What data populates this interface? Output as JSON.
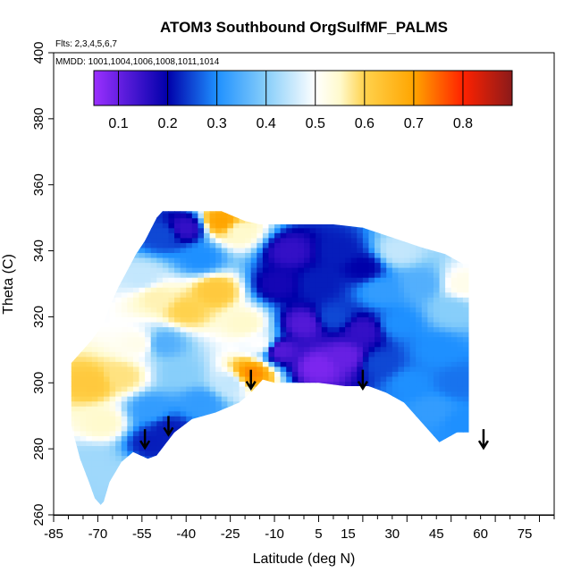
{
  "chart_data": {
    "type": "heatmap",
    "title": "ATOM3 Southbound OrgSulfMF_PALMS",
    "annotations": {
      "flights": "Flts: 2,3,4,5,6,7",
      "dates": "MMDD: 1001,1004,1006,1008,1011,1014"
    },
    "xlabel": "Latitude (deg N)",
    "ylabel": "Theta (C)",
    "xlim": [
      -85,
      85
    ],
    "ylim": [
      260,
      400
    ],
    "x_ticks": [
      -85,
      -70,
      -55,
      -40,
      -25,
      -10,
      5,
      15,
      30,
      45,
      60,
      75
    ],
    "y_ticks": [
      260,
      280,
      300,
      320,
      340,
      360,
      380,
      400
    ],
    "colorbar": {
      "min": 0.05,
      "max": 0.9,
      "ticks": [
        0.1,
        0.2,
        0.3,
        0.4,
        0.5,
        0.6,
        0.7,
        0.8
      ],
      "stops": [
        "#9b30ff",
        "#0000aa",
        "#1e90ff",
        "#87cefa",
        "#ffffff",
        "#fffacd",
        "#ffd24d",
        "#ffa500",
        "#ff2200",
        "#8b1a1a"
      ],
      "stop_values": [
        0.05,
        0.2,
        0.3,
        0.4,
        0.5,
        0.55,
        0.6,
        0.7,
        0.8,
        0.9
      ]
    },
    "tropopause_arrows": [
      {
        "lat": -54,
        "theta": 280
      },
      {
        "lat": -46,
        "theta": 284
      },
      {
        "lat": -18,
        "theta": 298
      },
      {
        "lat": 20,
        "theta": 298
      },
      {
        "lat": 61,
        "theta": 280
      }
    ],
    "outline": {
      "top": [
        [
          -79,
          306
        ],
        [
          -76,
          309
        ],
        [
          -72,
          313
        ],
        [
          -68,
          318
        ],
        [
          -66,
          323
        ],
        [
          -63,
          329
        ],
        [
          -60,
          334
        ],
        [
          -57,
          339
        ],
        [
          -54,
          343
        ],
        [
          -50,
          350
        ],
        [
          -48,
          352
        ],
        [
          -45,
          352
        ],
        [
          -28,
          352
        ],
        [
          -20,
          349
        ],
        [
          -15,
          348
        ],
        [
          0,
          348
        ],
        [
          10,
          348
        ],
        [
          20,
          347
        ],
        [
          30,
          344
        ],
        [
          40,
          341
        ],
        [
          48,
          339
        ],
        [
          54,
          336
        ],
        [
          56,
          336
        ]
      ],
      "bottom": [
        [
          56,
          285
        ],
        [
          52,
          285
        ],
        [
          46,
          282
        ],
        [
          40,
          288
        ],
        [
          34,
          294
        ],
        [
          28,
          297
        ],
        [
          22,
          299
        ],
        [
          14,
          299
        ],
        [
          5,
          300
        ],
        [
          -10,
          300
        ],
        [
          -14,
          301
        ],
        [
          -18,
          297
        ],
        [
          -22,
          294
        ],
        [
          -30,
          291
        ],
        [
          -38,
          289
        ],
        [
          -44,
          285
        ],
        [
          -50,
          278
        ],
        [
          -53,
          277
        ],
        [
          -58,
          279
        ],
        [
          -62,
          276
        ],
        [
          -66,
          270
        ],
        [
          -68,
          264
        ],
        [
          -69,
          263
        ],
        [
          -71,
          265
        ],
        [
          -73,
          270
        ],
        [
          -76,
          277
        ],
        [
          -79,
          287
        ]
      ]
    },
    "regions": [
      {
        "lat": -72,
        "theta": 300,
        "value": 0.62
      },
      {
        "lat": -62,
        "theta": 302,
        "value": 0.58
      },
      {
        "lat": -68,
        "theta": 288,
        "value": 0.55
      },
      {
        "lat": -72,
        "theta": 276,
        "value": 0.42
      },
      {
        "lat": -64,
        "theta": 272,
        "value": 0.42
      },
      {
        "lat": -56,
        "theta": 312,
        "value": 0.52
      },
      {
        "lat": -50,
        "theta": 326,
        "value": 0.56
      },
      {
        "lat": -55,
        "theta": 332,
        "value": 0.45
      },
      {
        "lat": -48,
        "theta": 345,
        "value": 0.25
      },
      {
        "lat": -40,
        "theta": 347,
        "value": 0.15
      },
      {
        "lat": -28,
        "theta": 349,
        "value": 0.7
      },
      {
        "lat": -22,
        "theta": 346,
        "value": 0.55
      },
      {
        "lat": -35,
        "theta": 338,
        "value": 0.3
      },
      {
        "lat": -30,
        "theta": 328,
        "value": 0.62
      },
      {
        "lat": -40,
        "theta": 322,
        "value": 0.6
      },
      {
        "lat": -20,
        "theta": 318,
        "value": 0.55
      },
      {
        "lat": -48,
        "theta": 312,
        "value": 0.35
      },
      {
        "lat": -42,
        "theta": 303,
        "value": 0.4
      },
      {
        "lat": -52,
        "theta": 292,
        "value": 0.32
      },
      {
        "lat": -46,
        "theta": 286,
        "value": 0.22
      },
      {
        "lat": -52,
        "theta": 282,
        "value": 0.22
      },
      {
        "lat": -35,
        "theta": 294,
        "value": 0.32
      },
      {
        "lat": -25,
        "theta": 300,
        "value": 0.45
      },
      {
        "lat": -18,
        "theta": 303,
        "value": 0.72
      },
      {
        "lat": -15,
        "theta": 312,
        "value": 0.5
      },
      {
        "lat": -9,
        "theta": 330,
        "value": 0.18
      },
      {
        "lat": -5,
        "theta": 340,
        "value": 0.15
      },
      {
        "lat": -8,
        "theta": 310,
        "value": 0.12
      },
      {
        "lat": 0,
        "theta": 318,
        "value": 0.12
      },
      {
        "lat": 5,
        "theta": 305,
        "value": 0.08
      },
      {
        "lat": 5,
        "theta": 330,
        "value": 0.22
      },
      {
        "lat": 12,
        "theta": 340,
        "value": 0.22
      },
      {
        "lat": 10,
        "theta": 320,
        "value": 0.25
      },
      {
        "lat": 14,
        "theta": 308,
        "value": 0.1
      },
      {
        "lat": 20,
        "theta": 335,
        "value": 0.2
      },
      {
        "lat": 20,
        "theta": 316,
        "value": 0.15
      },
      {
        "lat": 26,
        "theta": 328,
        "value": 0.32
      },
      {
        "lat": 26,
        "theta": 306,
        "value": 0.25
      },
      {
        "lat": 32,
        "theta": 340,
        "value": 0.45
      },
      {
        "lat": 32,
        "theta": 318,
        "value": 0.3
      },
      {
        "lat": 36,
        "theta": 300,
        "value": 0.3
      },
      {
        "lat": 40,
        "theta": 330,
        "value": 0.35
      },
      {
        "lat": 45,
        "theta": 310,
        "value": 0.3
      },
      {
        "lat": 44,
        "theta": 292,
        "value": 0.32
      },
      {
        "lat": 50,
        "theta": 322,
        "value": 0.4
      },
      {
        "lat": 52,
        "theta": 300,
        "value": 0.28
      },
      {
        "lat": 54,
        "theta": 330,
        "value": 0.52
      },
      {
        "lat": 54,
        "theta": 288,
        "value": 0.3
      }
    ]
  }
}
